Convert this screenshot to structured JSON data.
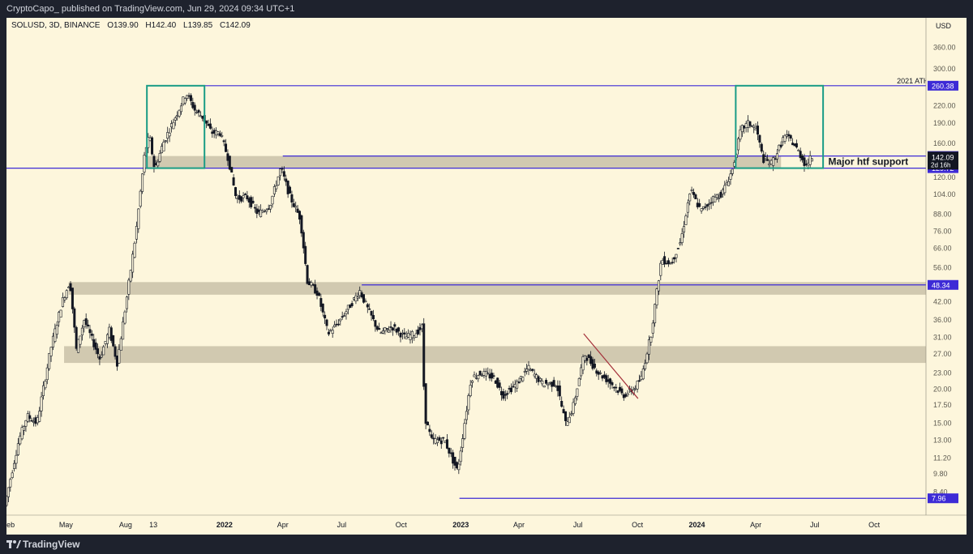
{
  "header": {
    "publisher": "CryptoCapo_ published on TradingView.com, Jun 29, 2024 09:34 UTC+1"
  },
  "legend": {
    "symbol": "SOLUSD, 3D, BINANCE",
    "open": "O139.90",
    "high": "H142.40",
    "low": "L139.85",
    "close": "C142.09"
  },
  "footer": {
    "brand": "TradingView"
  },
  "colors": {
    "background": "#fdf6dc",
    "candle": "#131722",
    "zone": "#c9c1a8",
    "level": "#3d2bd6",
    "box": "#1a9c86",
    "trend": "#a4303a"
  },
  "chart_data": {
    "type": "candlestick",
    "title": "SOLUSD, 3D, BINANCE",
    "y_scale": "log",
    "currency_label": "USD",
    "ylim": [
      7,
      420
    ],
    "xlim": [
      "2021-01-29",
      "2024-12-20"
    ],
    "y_tick_labels": [
      "360.00",
      "300.00",
      "260.00",
      "220.00",
      "190.00",
      "160.00",
      "120.00",
      "104.00",
      "88.00",
      "76.00",
      "66.00",
      "56.00",
      "48.00",
      "42.00",
      "36.00",
      "31.00",
      "27.00",
      "23.00",
      "20.00",
      "17.50",
      "15.00",
      "13.00",
      "11.20",
      "9.80",
      "8.40"
    ],
    "x_tick_labels": [
      {
        "date": "2021-02-01",
        "label": "Feb"
      },
      {
        "date": "2021-05-01",
        "label": "May"
      },
      {
        "date": "2021-08-01",
        "label": "Aug"
      },
      {
        "date": "2021-09-13",
        "label": "13"
      },
      {
        "date": "2022-01-01",
        "label": "2022"
      },
      {
        "date": "2022-04-01",
        "label": "Apr"
      },
      {
        "date": "2022-07-01",
        "label": "Jul"
      },
      {
        "date": "2022-10-01",
        "label": "Oct"
      },
      {
        "date": "2023-01-01",
        "label": "2023"
      },
      {
        "date": "2023-04-01",
        "label": "Apr"
      },
      {
        "date": "2023-07-01",
        "label": "Jul"
      },
      {
        "date": "2023-10-01",
        "label": "Oct"
      },
      {
        "date": "2024-01-01",
        "label": "2024"
      },
      {
        "date": "2024-04-01",
        "label": "Apr"
      },
      {
        "date": "2024-07-01",
        "label": "Jul"
      },
      {
        "date": "2024-10-01",
        "label": "Oct"
      }
    ],
    "price_path": [
      [
        "2021-01-29",
        7.5
      ],
      [
        "2021-02-20",
        13
      ],
      [
        "2021-03-05",
        16
      ],
      [
        "2021-03-20",
        15
      ],
      [
        "2021-04-10",
        28
      ],
      [
        "2021-04-28",
        42
      ],
      [
        "2021-05-10",
        50
      ],
      [
        "2021-05-20",
        28
      ],
      [
        "2021-06-01",
        36
      ],
      [
        "2021-06-25",
        26
      ],
      [
        "2021-07-10",
        33
      ],
      [
        "2021-07-22",
        25
      ],
      [
        "2021-08-05",
        42
      ],
      [
        "2021-08-20",
        75
      ],
      [
        "2021-09-03",
        150
      ],
      [
        "2021-09-10",
        170
      ],
      [
        "2021-09-18",
        128
      ],
      [
        "2021-10-01",
        160
      ],
      [
        "2021-10-20",
        200
      ],
      [
        "2021-11-06",
        245
      ],
      [
        "2021-11-20",
        210
      ],
      [
        "2021-12-01",
        200
      ],
      [
        "2021-12-15",
        175
      ],
      [
        "2021-12-28",
        175
      ],
      [
        "2022-01-10",
        140
      ],
      [
        "2022-01-22",
        100
      ],
      [
        "2022-02-07",
        102
      ],
      [
        "2022-02-25",
        88
      ],
      [
        "2022-03-15",
        95
      ],
      [
        "2022-04-01",
        130
      ],
      [
        "2022-04-15",
        102
      ],
      [
        "2022-05-01",
        85
      ],
      [
        "2022-05-12",
        50
      ],
      [
        "2022-05-28",
        45
      ],
      [
        "2022-06-13",
        32
      ],
      [
        "2022-06-28",
        35
      ],
      [
        "2022-07-15",
        40
      ],
      [
        "2022-08-01",
        46
      ],
      [
        "2022-08-12",
        40
      ],
      [
        "2022-09-01",
        32
      ],
      [
        "2022-09-20",
        34
      ],
      [
        "2022-10-10",
        31
      ],
      [
        "2022-10-25",
        32
      ],
      [
        "2022-11-06",
        34
      ],
      [
        "2022-11-09",
        16
      ],
      [
        "2022-11-20",
        13
      ],
      [
        "2022-12-10",
        13
      ],
      [
        "2022-12-30",
        10
      ],
      [
        "2023-01-06",
        13
      ],
      [
        "2023-01-20",
        22
      ],
      [
        "2023-02-05",
        23
      ],
      [
        "2023-02-25",
        22
      ],
      [
        "2023-03-10",
        19
      ],
      [
        "2023-04-01",
        21
      ],
      [
        "2023-04-18",
        24
      ],
      [
        "2023-05-10",
        21
      ],
      [
        "2023-06-01",
        21
      ],
      [
        "2023-06-15",
        15
      ],
      [
        "2023-06-26",
        17
      ],
      [
        "2023-07-14",
        27
      ],
      [
        "2023-08-05",
        23
      ],
      [
        "2023-08-25",
        21
      ],
      [
        "2023-09-12",
        19
      ],
      [
        "2023-09-28",
        20
      ],
      [
        "2023-10-10",
        22
      ],
      [
        "2023-10-25",
        32
      ],
      [
        "2023-11-10",
        60
      ],
      [
        "2023-11-25",
        58
      ],
      [
        "2023-12-10",
        70
      ],
      [
        "2023-12-25",
        108
      ],
      [
        "2024-01-10",
        90
      ],
      [
        "2024-01-28",
        100
      ],
      [
        "2024-02-12",
        105
      ],
      [
        "2024-02-28",
        128
      ],
      [
        "2024-03-12",
        180
      ],
      [
        "2024-03-24",
        190
      ],
      [
        "2024-04-05",
        180
      ],
      [
        "2024-04-15",
        140
      ],
      [
        "2024-04-28",
        135
      ],
      [
        "2024-05-08",
        150
      ],
      [
        "2024-05-18",
        170
      ],
      [
        "2024-05-28",
        165
      ],
      [
        "2024-06-10",
        148
      ],
      [
        "2024-06-20",
        133
      ],
      [
        "2024-06-29",
        142
      ]
    ],
    "horizontal_levels": [
      {
        "from": "2021-01-29",
        "to": "2024-12-20",
        "value": 129.72,
        "label": "129.72"
      },
      {
        "from": "2022-04-01",
        "to": "2024-12-20",
        "value": 143.71,
        "label": "143.71"
      },
      {
        "from": "2021-09-03",
        "to": "2024-12-20",
        "value": 260.38,
        "label": "260.38"
      },
      {
        "from": "2022-08-01",
        "to": "2024-12-20",
        "value": 48.34,
        "label": "48.34"
      },
      {
        "from": "2022-12-30",
        "to": "2024-12-20",
        "value": 7.96,
        "label": "7.96"
      }
    ],
    "zones": [
      {
        "from": "2021-09-03",
        "to": "2024-05-10",
        "low": 129.72,
        "high": 143.71
      },
      {
        "from": "2021-05-05",
        "to": "2024-12-20",
        "low": 44.5,
        "high": 49.5
      },
      {
        "from": "2021-04-28",
        "to": "2024-12-20",
        "low": 25,
        "high": 28.8
      }
    ],
    "boxes": [
      {
        "from": "2021-09-03",
        "to": "2021-12-01",
        "low": 129.72,
        "high": 260.38
      },
      {
        "from": "2024-03-01",
        "to": "2024-07-14",
        "low": 129.72,
        "high": 260.38
      }
    ],
    "trendline": {
      "from": [
        "2023-07-10",
        32
      ],
      "to": [
        "2023-10-02",
        18.5
      ]
    },
    "annotations": [
      {
        "text": "2021 ATH",
        "date": "2024-11-05",
        "value": 260.38
      },
      {
        "text": "Major htf support",
        "date": "2024-07-22",
        "value": 137
      }
    ],
    "price_axis_tags": [
      {
        "label": "142.09",
        "value": 142.09
      },
      {
        "label": "2d 16h",
        "value": 142.09
      }
    ]
  }
}
